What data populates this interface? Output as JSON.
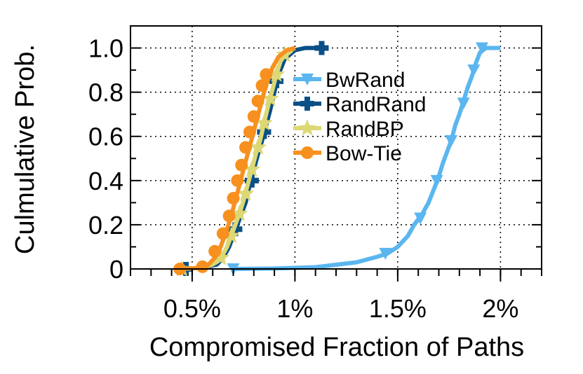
{
  "chart_data": {
    "type": "line",
    "xlabel": "Compromised Fraction of Paths",
    "ylabel": "Culmulative Prob.",
    "xlim": [
      0.2,
      2.2
    ],
    "ylim": [
      0,
      1.1
    ],
    "x_ticks": [
      {
        "value": 0.5,
        "label": "0.5%"
      },
      {
        "value": 1.0,
        "label": "1%"
      },
      {
        "value": 1.5,
        "label": "1.5%"
      },
      {
        "value": 2.0,
        "label": "2%"
      }
    ],
    "y_ticks": [
      {
        "value": 0,
        "label": "0"
      },
      {
        "value": 0.2,
        "label": "0.2"
      },
      {
        "value": 0.4,
        "label": "0.4"
      },
      {
        "value": 0.6,
        "label": "0.6"
      },
      {
        "value": 0.8,
        "label": "0.8"
      },
      {
        "value": 1.0,
        "label": "1.0"
      }
    ],
    "grid": "dotted",
    "legend_position": "center-right",
    "series": [
      {
        "name": "BwRand",
        "color": "#5bb6ef",
        "marker": "triangle-down",
        "points": [
          [
            0.7,
            0.0
          ],
          [
            0.9,
            0.002
          ],
          [
            1.1,
            0.008
          ],
          [
            1.3,
            0.03
          ],
          [
            1.4,
            0.055
          ],
          [
            1.45,
            0.07
          ],
          [
            1.5,
            0.1
          ],
          [
            1.55,
            0.15
          ],
          [
            1.58,
            0.2
          ],
          [
            1.62,
            0.25
          ],
          [
            1.65,
            0.3
          ],
          [
            1.68,
            0.37
          ],
          [
            1.7,
            0.42
          ],
          [
            1.72,
            0.48
          ],
          [
            1.74,
            0.53
          ],
          [
            1.76,
            0.58
          ],
          [
            1.78,
            0.65
          ],
          [
            1.8,
            0.7
          ],
          [
            1.82,
            0.76
          ],
          [
            1.84,
            0.82
          ],
          [
            1.86,
            0.87
          ],
          [
            1.88,
            0.93
          ],
          [
            1.9,
            0.98
          ],
          [
            1.93,
            1.0
          ],
          [
            2.0,
            1.0
          ]
        ],
        "marker_points": [
          [
            0.7,
            0.0
          ],
          [
            1.44,
            0.07
          ],
          [
            1.61,
            0.23
          ],
          [
            1.69,
            0.4
          ],
          [
            1.76,
            0.58
          ],
          [
            1.82,
            0.75
          ],
          [
            1.87,
            0.9
          ],
          [
            1.91,
            1.0
          ]
        ]
      },
      {
        "name": "RandRand",
        "color": "#0a4f86",
        "marker": "plus",
        "points": [
          [
            0.45,
            0.0
          ],
          [
            0.55,
            0.005
          ],
          [
            0.62,
            0.02
          ],
          [
            0.65,
            0.05
          ],
          [
            0.68,
            0.1
          ],
          [
            0.7,
            0.15
          ],
          [
            0.72,
            0.2
          ],
          [
            0.74,
            0.25
          ],
          [
            0.76,
            0.3
          ],
          [
            0.78,
            0.38
          ],
          [
            0.8,
            0.45
          ],
          [
            0.82,
            0.52
          ],
          [
            0.84,
            0.58
          ],
          [
            0.86,
            0.65
          ],
          [
            0.88,
            0.72
          ],
          [
            0.9,
            0.8
          ],
          [
            0.92,
            0.88
          ],
          [
            0.95,
            0.95
          ],
          [
            1.0,
            0.99
          ],
          [
            1.05,
            1.0
          ],
          [
            1.13,
            1.0
          ]
        ],
        "marker_points": [
          [
            0.47,
            0.0
          ],
          [
            0.71,
            0.18
          ],
          [
            0.79,
            0.4
          ],
          [
            0.85,
            0.62
          ],
          [
            0.91,
            0.85
          ],
          [
            1.13,
            1.0
          ]
        ]
      },
      {
        "name": "RandBP",
        "color": "#dcd874",
        "marker": "star",
        "points": [
          [
            0.43,
            0.0
          ],
          [
            0.55,
            0.005
          ],
          [
            0.6,
            0.02
          ],
          [
            0.64,
            0.05
          ],
          [
            0.67,
            0.1
          ],
          [
            0.69,
            0.15
          ],
          [
            0.71,
            0.2
          ],
          [
            0.73,
            0.25
          ],
          [
            0.75,
            0.31
          ],
          [
            0.77,
            0.38
          ],
          [
            0.79,
            0.45
          ],
          [
            0.81,
            0.52
          ],
          [
            0.83,
            0.58
          ],
          [
            0.85,
            0.66
          ],
          [
            0.87,
            0.74
          ],
          [
            0.89,
            0.81
          ],
          [
            0.91,
            0.88
          ],
          [
            0.93,
            0.94
          ],
          [
            0.96,
            0.98
          ],
          [
            1.0,
            1.0
          ]
        ],
        "marker_points": [
          [
            0.45,
            0.0
          ],
          [
            0.64,
            0.05
          ],
          [
            0.69,
            0.15
          ],
          [
            0.73,
            0.25
          ],
          [
            0.76,
            0.34
          ],
          [
            0.79,
            0.45
          ],
          [
            0.82,
            0.55
          ],
          [
            0.85,
            0.66
          ],
          [
            0.88,
            0.77
          ],
          [
            0.91,
            0.88
          ],
          [
            0.95,
            0.97
          ]
        ]
      },
      {
        "name": "Bow-Tie",
        "color": "#f7901e",
        "marker": "circle",
        "points": [
          [
            0.42,
            0.0
          ],
          [
            0.55,
            0.005
          ],
          [
            0.58,
            0.02
          ],
          [
            0.61,
            0.05
          ],
          [
            0.63,
            0.08
          ],
          [
            0.65,
            0.13
          ],
          [
            0.67,
            0.18
          ],
          [
            0.69,
            0.24
          ],
          [
            0.71,
            0.31
          ],
          [
            0.73,
            0.38
          ],
          [
            0.75,
            0.45
          ],
          [
            0.77,
            0.52
          ],
          [
            0.79,
            0.59
          ],
          [
            0.81,
            0.66
          ],
          [
            0.83,
            0.73
          ],
          [
            0.85,
            0.8
          ],
          [
            0.87,
            0.86
          ],
          [
            0.89,
            0.91
          ],
          [
            0.92,
            0.96
          ],
          [
            0.96,
            0.99
          ],
          [
            1.0,
            1.0
          ]
        ],
        "marker_points": [
          [
            0.44,
            0.0
          ],
          [
            0.55,
            0.01
          ],
          [
            0.61,
            0.08
          ],
          [
            0.65,
            0.16
          ],
          [
            0.68,
            0.24
          ],
          [
            0.7,
            0.32
          ],
          [
            0.72,
            0.4
          ],
          [
            0.74,
            0.47
          ],
          [
            0.76,
            0.55
          ],
          [
            0.78,
            0.62
          ],
          [
            0.8,
            0.69
          ],
          [
            0.82,
            0.76
          ],
          [
            0.84,
            0.83
          ],
          [
            0.86,
            0.88
          ]
        ]
      }
    ]
  }
}
